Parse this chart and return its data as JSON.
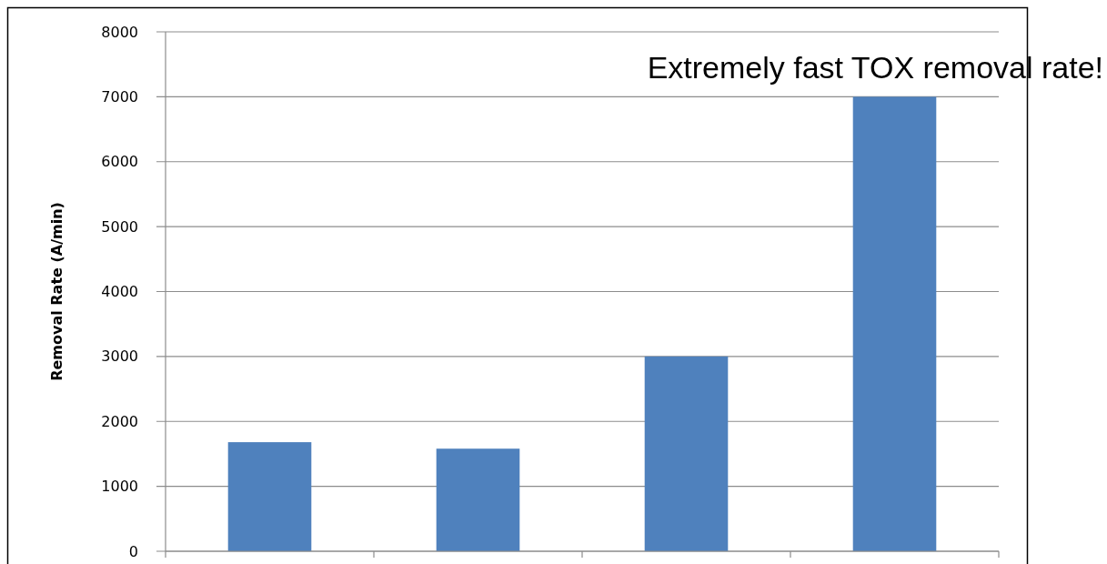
{
  "chart_data": {
    "type": "bar",
    "ylabel": "Removal Rate (A/min)",
    "annotations": [
      "Extremely fast TOX removal rate!"
    ],
    "categories": [
      null,
      null,
      null,
      null
    ],
    "values": [
      1680,
      1580,
      3000,
      7000
    ],
    "color": "#4f81bd",
    "ylim": [
      0,
      8000
    ],
    "yticks": [
      0,
      1000,
      2000,
      3000,
      4000,
      5000,
      6000,
      7000,
      8000
    ],
    "grid": "y"
  }
}
